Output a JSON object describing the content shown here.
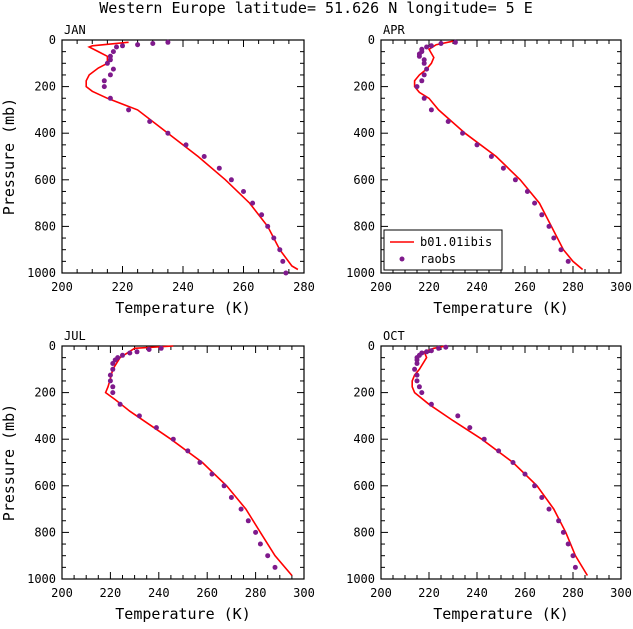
{
  "figure": {
    "title": "Western Europe  latitude= 51.626 N longitude= 5 E"
  },
  "colors": {
    "model": "#ff0000",
    "obs": "#7f1a8c",
    "axis": "#000000"
  },
  "legend": {
    "panel": 1,
    "items": [
      {
        "label": "b01.01ibis",
        "kind": "line",
        "color": "#ff0000"
      },
      {
        "label": "raobs",
        "kind": "marker",
        "color": "#7f1a8c"
      }
    ]
  },
  "chart_data": [
    {
      "type": "line",
      "panel_label": "JAN",
      "xlabel": "Temperature (K)",
      "ylabel": "Pressure (mb)",
      "xlim": [
        200,
        280
      ],
      "xticks": [
        200,
        220,
        240,
        260,
        280
      ],
      "ylim": [
        1000,
        0
      ],
      "yticks": [
        0,
        200,
        400,
        600,
        800,
        1000
      ],
      "series": [
        {
          "name": "b01.01ibis",
          "kind": "line",
          "points": [
            [
              222,
              10
            ],
            [
              210,
              25
            ],
            [
              209,
              30
            ],
            [
              212,
              50
            ],
            [
              215,
              70
            ],
            [
              215,
              100
            ],
            [
              212,
              120
            ],
            [
              209,
              150
            ],
            [
              208,
              175
            ],
            [
              208,
              200
            ],
            [
              210,
              220
            ],
            [
              215,
              250
            ],
            [
              225,
              300
            ],
            [
              235,
              400
            ],
            [
              245,
              500
            ],
            [
              254,
              600
            ],
            [
              262,
              700
            ],
            [
              268,
              800
            ],
            [
              272,
              900
            ],
            [
              276,
              970
            ],
            [
              278,
              985
            ]
          ]
        },
        {
          "name": "raobs",
          "kind": "scatter",
          "points": [
            [
              235,
              10
            ],
            [
              230,
              15
            ],
            [
              225,
              20
            ],
            [
              220,
              25
            ],
            [
              218,
              30
            ],
            [
              217,
              50
            ],
            [
              216,
              70
            ],
            [
              216,
              85
            ],
            [
              215,
              100
            ],
            [
              217,
              125
            ],
            [
              216,
              150
            ],
            [
              214,
              175
            ],
            [
              214,
              200
            ],
            [
              216,
              250
            ],
            [
              222,
              300
            ],
            [
              229,
              350
            ],
            [
              235,
              400
            ],
            [
              241,
              450
            ],
            [
              247,
              500
            ],
            [
              252,
              550
            ],
            [
              256,
              600
            ],
            [
              260,
              650
            ],
            [
              263,
              700
            ],
            [
              266,
              750
            ],
            [
              268,
              800
            ],
            [
              270,
              850
            ],
            [
              272,
              900
            ],
            [
              273,
              950
            ],
            [
              274,
              1000
            ]
          ]
        }
      ]
    },
    {
      "type": "line",
      "panel_label": "APR",
      "xlabel": "Temperature (K)",
      "ylabel": "",
      "xlim": [
        200,
        300
      ],
      "xticks": [
        200,
        220,
        240,
        260,
        280,
        300
      ],
      "ylim": [
        1000,
        0
      ],
      "yticks": [
        0,
        200,
        400,
        600,
        800,
        1000
      ],
      "series": [
        {
          "name": "b01.01ibis",
          "kind": "line",
          "points": [
            [
              230,
              5
            ],
            [
              223,
              20
            ],
            [
              220,
              40
            ],
            [
              222,
              75
            ],
            [
              221,
              100
            ],
            [
              219,
              125
            ],
            [
              216,
              150
            ],
            [
              214,
              175
            ],
            [
              214,
              200
            ],
            [
              216,
              225
            ],
            [
              220,
              250
            ],
            [
              224,
              300
            ],
            [
              235,
              400
            ],
            [
              248,
              500
            ],
            [
              258,
              600
            ],
            [
              266,
              700
            ],
            [
              271,
              800
            ],
            [
              276,
              900
            ],
            [
              280,
              950
            ],
            [
              284,
              985
            ]
          ]
        },
        {
          "name": "raobs",
          "kind": "scatter",
          "points": [
            [
              231,
              10
            ],
            [
              225,
              15
            ],
            [
              221,
              25
            ],
            [
              219,
              30
            ],
            [
              217,
              40
            ],
            [
              217,
              50
            ],
            [
              216,
              60
            ],
            [
              216,
              70
            ],
            [
              218,
              85
            ],
            [
              218,
              100
            ],
            [
              219,
              125
            ],
            [
              218,
              150
            ],
            [
              217,
              175
            ],
            [
              215,
              200
            ],
            [
              218,
              250
            ],
            [
              221,
              300
            ],
            [
              228,
              350
            ],
            [
              234,
              400
            ],
            [
              240,
              450
            ],
            [
              246,
              500
            ],
            [
              251,
              550
            ],
            [
              256,
              600
            ],
            [
              261,
              650
            ],
            [
              264,
              700
            ],
            [
              267,
              750
            ],
            [
              270,
              800
            ],
            [
              272,
              850
            ],
            [
              275,
              900
            ],
            [
              278,
              950
            ]
          ]
        }
      ]
    },
    {
      "type": "line",
      "panel_label": "JUL",
      "xlabel": "Temperature (K)",
      "ylabel": "Pressure (mb)",
      "xlim": [
        200,
        300
      ],
      "xticks": [
        200,
        220,
        240,
        260,
        280,
        300
      ],
      "ylim": [
        1000,
        0
      ],
      "yticks": [
        0,
        200,
        400,
        600,
        800,
        1000
      ],
      "series": [
        {
          "name": "b01.01ibis",
          "kind": "line",
          "points": [
            [
              246,
              0
            ],
            [
              230,
              10
            ],
            [
              224,
              50
            ],
            [
              221,
              100
            ],
            [
              220,
              140
            ],
            [
              219,
              175
            ],
            [
              218,
              200
            ],
            [
              222,
              230
            ],
            [
              228,
              280
            ],
            [
              245,
              400
            ],
            [
              258,
              500
            ],
            [
              268,
              600
            ],
            [
              276,
              700
            ],
            [
              282,
              800
            ],
            [
              288,
              900
            ],
            [
              295,
              985
            ]
          ]
        },
        {
          "name": "raobs",
          "kind": "scatter",
          "points": [
            [
              241,
              10
            ],
            [
              236,
              15
            ],
            [
              231,
              25
            ],
            [
              228,
              30
            ],
            [
              225,
              40
            ],
            [
              223,
              50
            ],
            [
              222,
              60
            ],
            [
              221,
              75
            ],
            [
              221,
              100
            ],
            [
              220,
              125
            ],
            [
              220,
              150
            ],
            [
              221,
              175
            ],
            [
              221,
              200
            ],
            [
              224,
              250
            ],
            [
              232,
              300
            ],
            [
              239,
              350
            ],
            [
              246,
              400
            ],
            [
              252,
              450
            ],
            [
              257,
              500
            ],
            [
              262,
              550
            ],
            [
              267,
              600
            ],
            [
              270,
              650
            ],
            [
              274,
              700
            ],
            [
              277,
              750
            ],
            [
              280,
              800
            ],
            [
              282,
              850
            ],
            [
              285,
              900
            ],
            [
              288,
              950
            ]
          ]
        }
      ]
    },
    {
      "type": "line",
      "panel_label": "OCT",
      "xlabel": "Temperature (K)",
      "ylabel": "",
      "xlim": [
        200,
        300
      ],
      "xticks": [
        200,
        220,
        240,
        260,
        280,
        300
      ],
      "ylim": [
        1000,
        0
      ],
      "yticks": [
        0,
        200,
        400,
        600,
        800,
        1000
      ],
      "series": [
        {
          "name": "b01.01ibis",
          "kind": "line",
          "points": [
            [
              227,
              0
            ],
            [
              222,
              10
            ],
            [
              218,
              25
            ],
            [
              219,
              50
            ],
            [
              216,
              100
            ],
            [
              214,
              125
            ],
            [
              213,
              150
            ],
            [
              213,
              175
            ],
            [
              214,
              200
            ],
            [
              220,
              250
            ],
            [
              230,
              320
            ],
            [
              242,
              400
            ],
            [
              255,
              500
            ],
            [
              265,
              600
            ],
            [
              272,
              700
            ],
            [
              277,
              800
            ],
            [
              281,
              900
            ],
            [
              286,
              985
            ]
          ]
        },
        {
          "name": "raobs",
          "kind": "scatter",
          "points": [
            [
              227,
              5
            ],
            [
              224,
              10
            ],
            [
              221,
              20
            ],
            [
              219,
              25
            ],
            [
              217,
              30
            ],
            [
              216,
              40
            ],
            [
              215,
              50
            ],
            [
              215,
              60
            ],
            [
              215,
              75
            ],
            [
              214,
              100
            ],
            [
              215,
              125
            ],
            [
              215,
              150
            ],
            [
              216,
              175
            ],
            [
              217,
              200
            ],
            [
              221,
              250
            ],
            [
              232,
              300
            ],
            [
              237,
              350
            ],
            [
              243,
              400
            ],
            [
              249,
              450
            ],
            [
              255,
              500
            ],
            [
              260,
              550
            ],
            [
              264,
              600
            ],
            [
              267,
              650
            ],
            [
              270,
              700
            ],
            [
              274,
              750
            ],
            [
              276,
              800
            ],
            [
              278,
              850
            ],
            [
              280,
              900
            ],
            [
              281,
              950
            ]
          ]
        }
      ]
    }
  ]
}
